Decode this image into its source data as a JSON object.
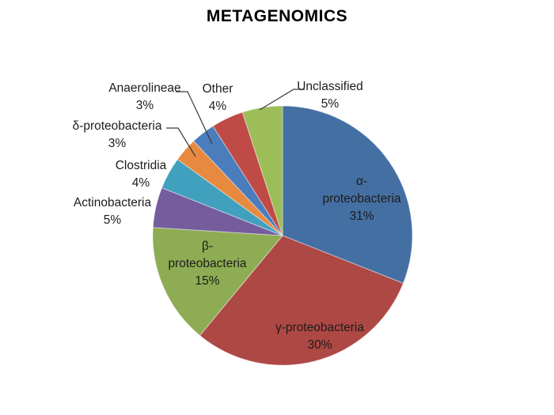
{
  "title": "METAGENOMICS",
  "colors": {
    "background": "#ffffff",
    "title_text": "#000000",
    "label_text": "#1c1c1c",
    "leader_line": "#3a3a3a"
  },
  "chart_data": {
    "type": "pie",
    "title": "METAGENOMICS",
    "legend": "none",
    "start_angle_deg": 0,
    "direction": "clockwise",
    "total": 100,
    "slices": [
      {
        "id": "alpha-proteobacteria",
        "label": "α-proteobacteria",
        "value": 31,
        "pct": "31%",
        "color": "#446FA2",
        "label_placement": "inside",
        "label_lines": [
          "α-",
          "proteobacteria",
          "31%"
        ]
      },
      {
        "id": "gamma-proteobacteria",
        "label": "γ-proteobacteria",
        "value": 30,
        "pct": "30%",
        "color": "#AE4845",
        "label_placement": "inside",
        "label_lines": [
          "γ-proteobacteria",
          "30%"
        ]
      },
      {
        "id": "beta-proteobacteria",
        "label": "β-proteobacteria",
        "value": 15,
        "pct": "15%",
        "color": "#8EAC53",
        "label_placement": "inside",
        "label_lines": [
          "β-",
          "proteobacteria",
          "15%"
        ]
      },
      {
        "id": "actinobacteria",
        "label": "Actinobacteria",
        "value": 5,
        "pct": "5%",
        "color": "#755C9D",
        "label_placement": "outside",
        "label_lines": [
          "Actinobacteria",
          "5%"
        ]
      },
      {
        "id": "clostridia",
        "label": "Clostridia",
        "value": 4,
        "pct": "4%",
        "color": "#41A0BD",
        "label_placement": "outside",
        "label_lines": [
          "Clostridia",
          "4%"
        ]
      },
      {
        "id": "delta-proteobacteria",
        "label": "δ-proteobacteria",
        "value": 3,
        "pct": "3%",
        "color": "#E78A40",
        "label_placement": "outside",
        "label_lines": [
          "δ-proteobacteria",
          "3%"
        ]
      },
      {
        "id": "anaerolineae",
        "label": "Anaerolineae",
        "value": 3,
        "pct": "3%",
        "color": "#4B7DBC",
        "label_placement": "outside",
        "label_lines": [
          "Anaerolineae",
          "3%"
        ]
      },
      {
        "id": "other",
        "label": "Other",
        "value": 4,
        "pct": "4%",
        "color": "#C04A45",
        "label_placement": "outside",
        "label_lines": [
          "Other",
          "4%"
        ]
      },
      {
        "id": "unclassified",
        "label": "Unclassified",
        "value": 5,
        "pct": "5%",
        "color": "#9DBD58",
        "label_placement": "outside",
        "label_lines": [
          "Unclassified",
          "5%"
        ]
      }
    ]
  }
}
